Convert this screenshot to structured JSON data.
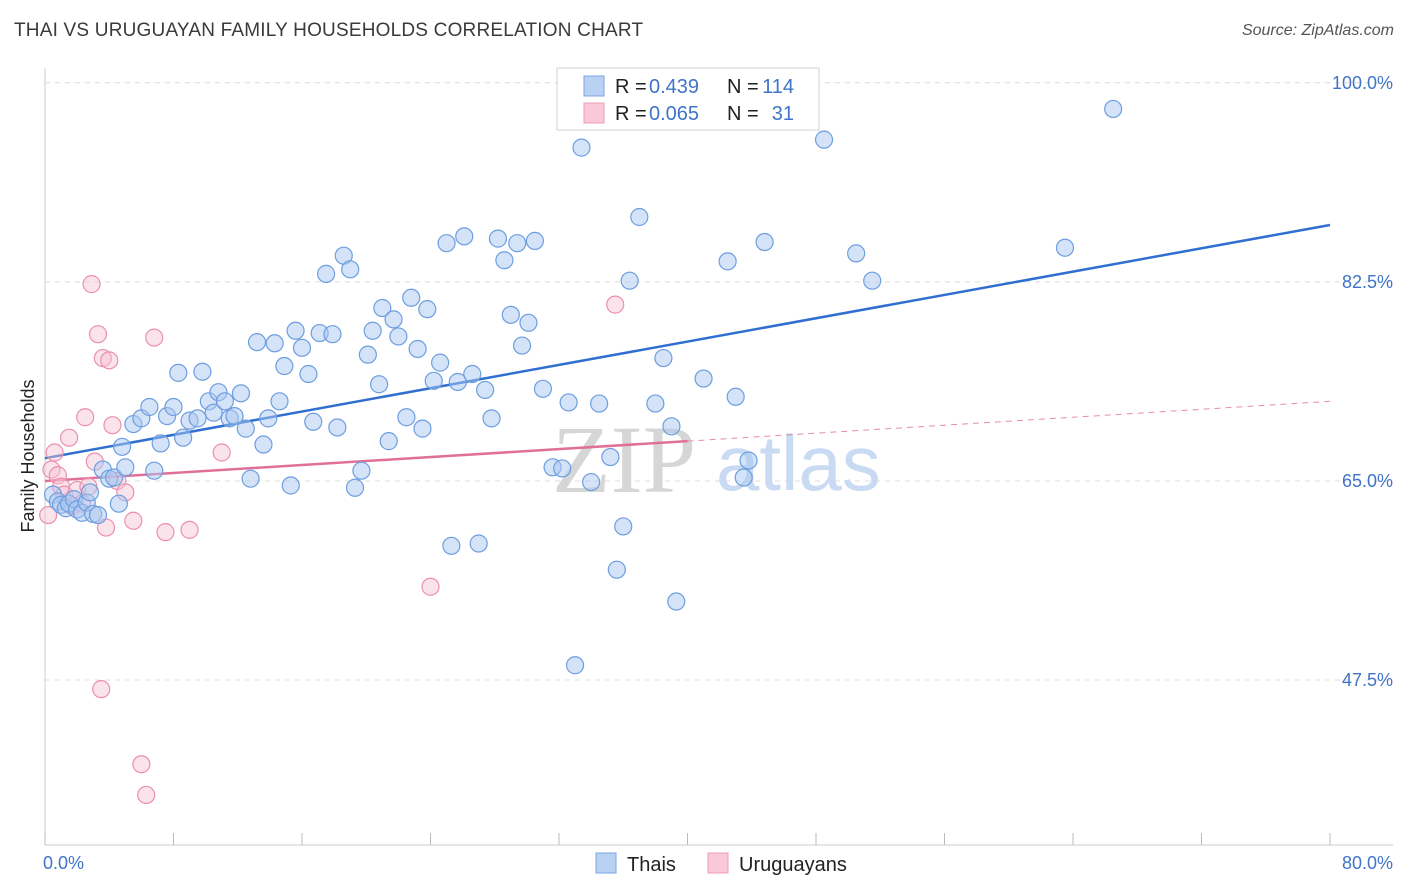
{
  "header": {
    "title": "THAI VS URUGUAYAN FAMILY HOUSEHOLDS CORRELATION CHART",
    "source": "Source: ZipAtlas.com"
  },
  "watermark": {
    "zip": "ZIP",
    "atlas": "atlas"
  },
  "legend": {
    "rows": [
      {
        "r_label": "R =",
        "r_value": "0.439",
        "n_label": "N =",
        "n_value": "114",
        "color": "#8ab4e8"
      },
      {
        "r_label": "R =",
        "r_value": "0.065",
        "n_label": "N =",
        "n_value": "31",
        "color": "#f4a8c0"
      }
    ]
  },
  "colors": {
    "thai_fill": "#a9c8f0",
    "thai_stroke": "#6d9ee0",
    "thai_line": "#2f6fd0",
    "uru_fill": "#f7c0d2",
    "uru_stroke": "#ec8fae",
    "uru_line": "#e0709a",
    "grid": "#dcdcdc",
    "tick_text": "#3f74c8"
  },
  "chart_data": {
    "type": "scatter",
    "title": "THAI VS URUGUAYAN FAMILY HOUSEHOLDS CORRELATION CHART",
    "xlabel": "",
    "ylabel": "Family Households",
    "xlim": [
      0,
      80
    ],
    "ylim": [
      33,
      102
    ],
    "x_tick_labels": [
      "0.0%",
      "80.0%"
    ],
    "y_ticks": [
      47.5,
      65.0,
      82.5,
      100.0
    ],
    "y_tick_labels": [
      "47.5%",
      "65.0%",
      "82.5%",
      "100.0%"
    ],
    "legend_position": "bottom-center",
    "series": [
      {
        "name": "Thais",
        "R": 0.439,
        "N": 114,
        "trend": {
          "x": [
            0,
            80
          ],
          "y": [
            67.0,
            87.5
          ],
          "style": "solid"
        },
        "points": [
          [
            0.5,
            63.8
          ],
          [
            0.8,
            63.2
          ],
          [
            1.0,
            62.9
          ],
          [
            1.3,
            62.6
          ],
          [
            1.5,
            63.0
          ],
          [
            1.8,
            63.4
          ],
          [
            2.0,
            62.5
          ],
          [
            2.3,
            62.2
          ],
          [
            2.6,
            63.1
          ],
          [
            2.8,
            64.0
          ],
          [
            3.0,
            62.1
          ],
          [
            3.3,
            62.0
          ],
          [
            3.6,
            66.0
          ],
          [
            4.0,
            65.2
          ],
          [
            4.3,
            65.3
          ],
          [
            4.6,
            63.0
          ],
          [
            4.8,
            68.0
          ],
          [
            5.0,
            66.2
          ],
          [
            5.5,
            70.0
          ],
          [
            6.0,
            70.5
          ],
          [
            6.5,
            71.5
          ],
          [
            6.8,
            65.9
          ],
          [
            7.2,
            68.3
          ],
          [
            7.6,
            70.7
          ],
          [
            8.0,
            71.5
          ],
          [
            8.3,
            74.5
          ],
          [
            8.6,
            68.8
          ],
          [
            9.0,
            70.3
          ],
          [
            9.5,
            70.5
          ],
          [
            9.8,
            74.6
          ],
          [
            10.2,
            72.0
          ],
          [
            10.5,
            71.0
          ],
          [
            10.8,
            72.8
          ],
          [
            11.2,
            72.0
          ],
          [
            11.5,
            70.5
          ],
          [
            11.8,
            70.7
          ],
          [
            12.2,
            72.7
          ],
          [
            12.5,
            69.6
          ],
          [
            12.8,
            65.2
          ],
          [
            13.2,
            77.2
          ],
          [
            13.6,
            68.2
          ],
          [
            13.9,
            70.5
          ],
          [
            14.3,
            77.1
          ],
          [
            14.6,
            72.0
          ],
          [
            14.9,
            75.1
          ],
          [
            15.3,
            64.6
          ],
          [
            15.6,
            78.2
          ],
          [
            16.0,
            76.7
          ],
          [
            16.4,
            74.4
          ],
          [
            16.7,
            70.2
          ],
          [
            17.1,
            78.0
          ],
          [
            17.5,
            83.2
          ],
          [
            17.9,
            77.9
          ],
          [
            18.2,
            69.7
          ],
          [
            18.6,
            84.8
          ],
          [
            19.0,
            83.6
          ],
          [
            19.3,
            64.4
          ],
          [
            19.7,
            65.9
          ],
          [
            20.1,
            76.1
          ],
          [
            20.4,
            78.2
          ],
          [
            20.8,
            73.5
          ],
          [
            21.0,
            80.2
          ],
          [
            21.4,
            68.5
          ],
          [
            21.7,
            79.2
          ],
          [
            22.0,
            77.7
          ],
          [
            22.5,
            70.6
          ],
          [
            22.8,
            81.1
          ],
          [
            23.2,
            76.6
          ],
          [
            23.5,
            69.6
          ],
          [
            23.8,
            80.1
          ],
          [
            24.2,
            73.8
          ],
          [
            24.6,
            75.4
          ],
          [
            25.0,
            85.9
          ],
          [
            25.3,
            59.3
          ],
          [
            25.7,
            73.7
          ],
          [
            26.1,
            86.5
          ],
          [
            26.6,
            74.4
          ],
          [
            27.0,
            59.5
          ],
          [
            27.4,
            73.0
          ],
          [
            27.8,
            70.5
          ],
          [
            28.2,
            86.3
          ],
          [
            28.6,
            84.4
          ],
          [
            29.0,
            79.6
          ],
          [
            29.4,
            85.9
          ],
          [
            29.7,
            76.9
          ],
          [
            30.1,
            78.9
          ],
          [
            30.5,
            86.1
          ],
          [
            31.0,
            73.1
          ],
          [
            31.6,
            66.2
          ],
          [
            32.2,
            66.1
          ],
          [
            32.6,
            71.9
          ],
          [
            33.0,
            48.8
          ],
          [
            33.4,
            94.3
          ],
          [
            34.0,
            64.9
          ],
          [
            34.5,
            71.8
          ],
          [
            35.2,
            67.1
          ],
          [
            35.6,
            57.2
          ],
          [
            36.0,
            61.0
          ],
          [
            36.4,
            82.6
          ],
          [
            37.0,
            88.2
          ],
          [
            38.0,
            71.8
          ],
          [
            38.5,
            75.8
          ],
          [
            39.0,
            69.8
          ],
          [
            39.3,
            54.4
          ],
          [
            41.0,
            74.0
          ],
          [
            42.5,
            84.3
          ],
          [
            43.0,
            72.4
          ],
          [
            43.5,
            65.3
          ],
          [
            43.8,
            66.8
          ],
          [
            44.8,
            86.0
          ],
          [
            48.5,
            95.0
          ],
          [
            50.5,
            85.0
          ],
          [
            51.5,
            82.6
          ],
          [
            63.5,
            85.5
          ],
          [
            66.5,
            97.7
          ]
        ]
      },
      {
        "name": "Uruguayans",
        "R": 0.065,
        "N": 31,
        "trend": {
          "x": [
            0,
            40
          ],
          "y": [
            65.0,
            68.5
          ],
          "style": "solid"
        },
        "trend_extension": {
          "x": [
            40,
            80
          ],
          "y": [
            68.5,
            72.0
          ],
          "style": "dashed"
        },
        "points": [
          [
            0.2,
            62.0
          ],
          [
            0.4,
            66.0
          ],
          [
            0.6,
            67.5
          ],
          [
            0.8,
            65.5
          ],
          [
            1.0,
            64.5
          ],
          [
            1.2,
            63.8
          ],
          [
            1.5,
            68.8
          ],
          [
            1.7,
            62.8
          ],
          [
            2.0,
            64.2
          ],
          [
            2.3,
            63.0
          ],
          [
            2.5,
            70.6
          ],
          [
            2.7,
            64.5
          ],
          [
            2.9,
            82.3
          ],
          [
            3.1,
            66.7
          ],
          [
            3.3,
            77.9
          ],
          [
            3.5,
            46.7
          ],
          [
            3.6,
            75.8
          ],
          [
            3.8,
            60.9
          ],
          [
            4.0,
            75.6
          ],
          [
            4.2,
            69.9
          ],
          [
            4.5,
            65.0
          ],
          [
            5.0,
            64.0
          ],
          [
            5.5,
            61.5
          ],
          [
            6.0,
            40.1
          ],
          [
            6.3,
            37.4
          ],
          [
            6.8,
            77.6
          ],
          [
            7.5,
            60.5
          ],
          [
            9.0,
            60.7
          ],
          [
            11.0,
            67.5
          ],
          [
            24.0,
            55.7
          ],
          [
            35.5,
            80.5
          ]
        ]
      }
    ]
  },
  "bottom_legend": {
    "items": [
      {
        "label": "Thais"
      },
      {
        "label": "Uruguayans"
      }
    ]
  }
}
